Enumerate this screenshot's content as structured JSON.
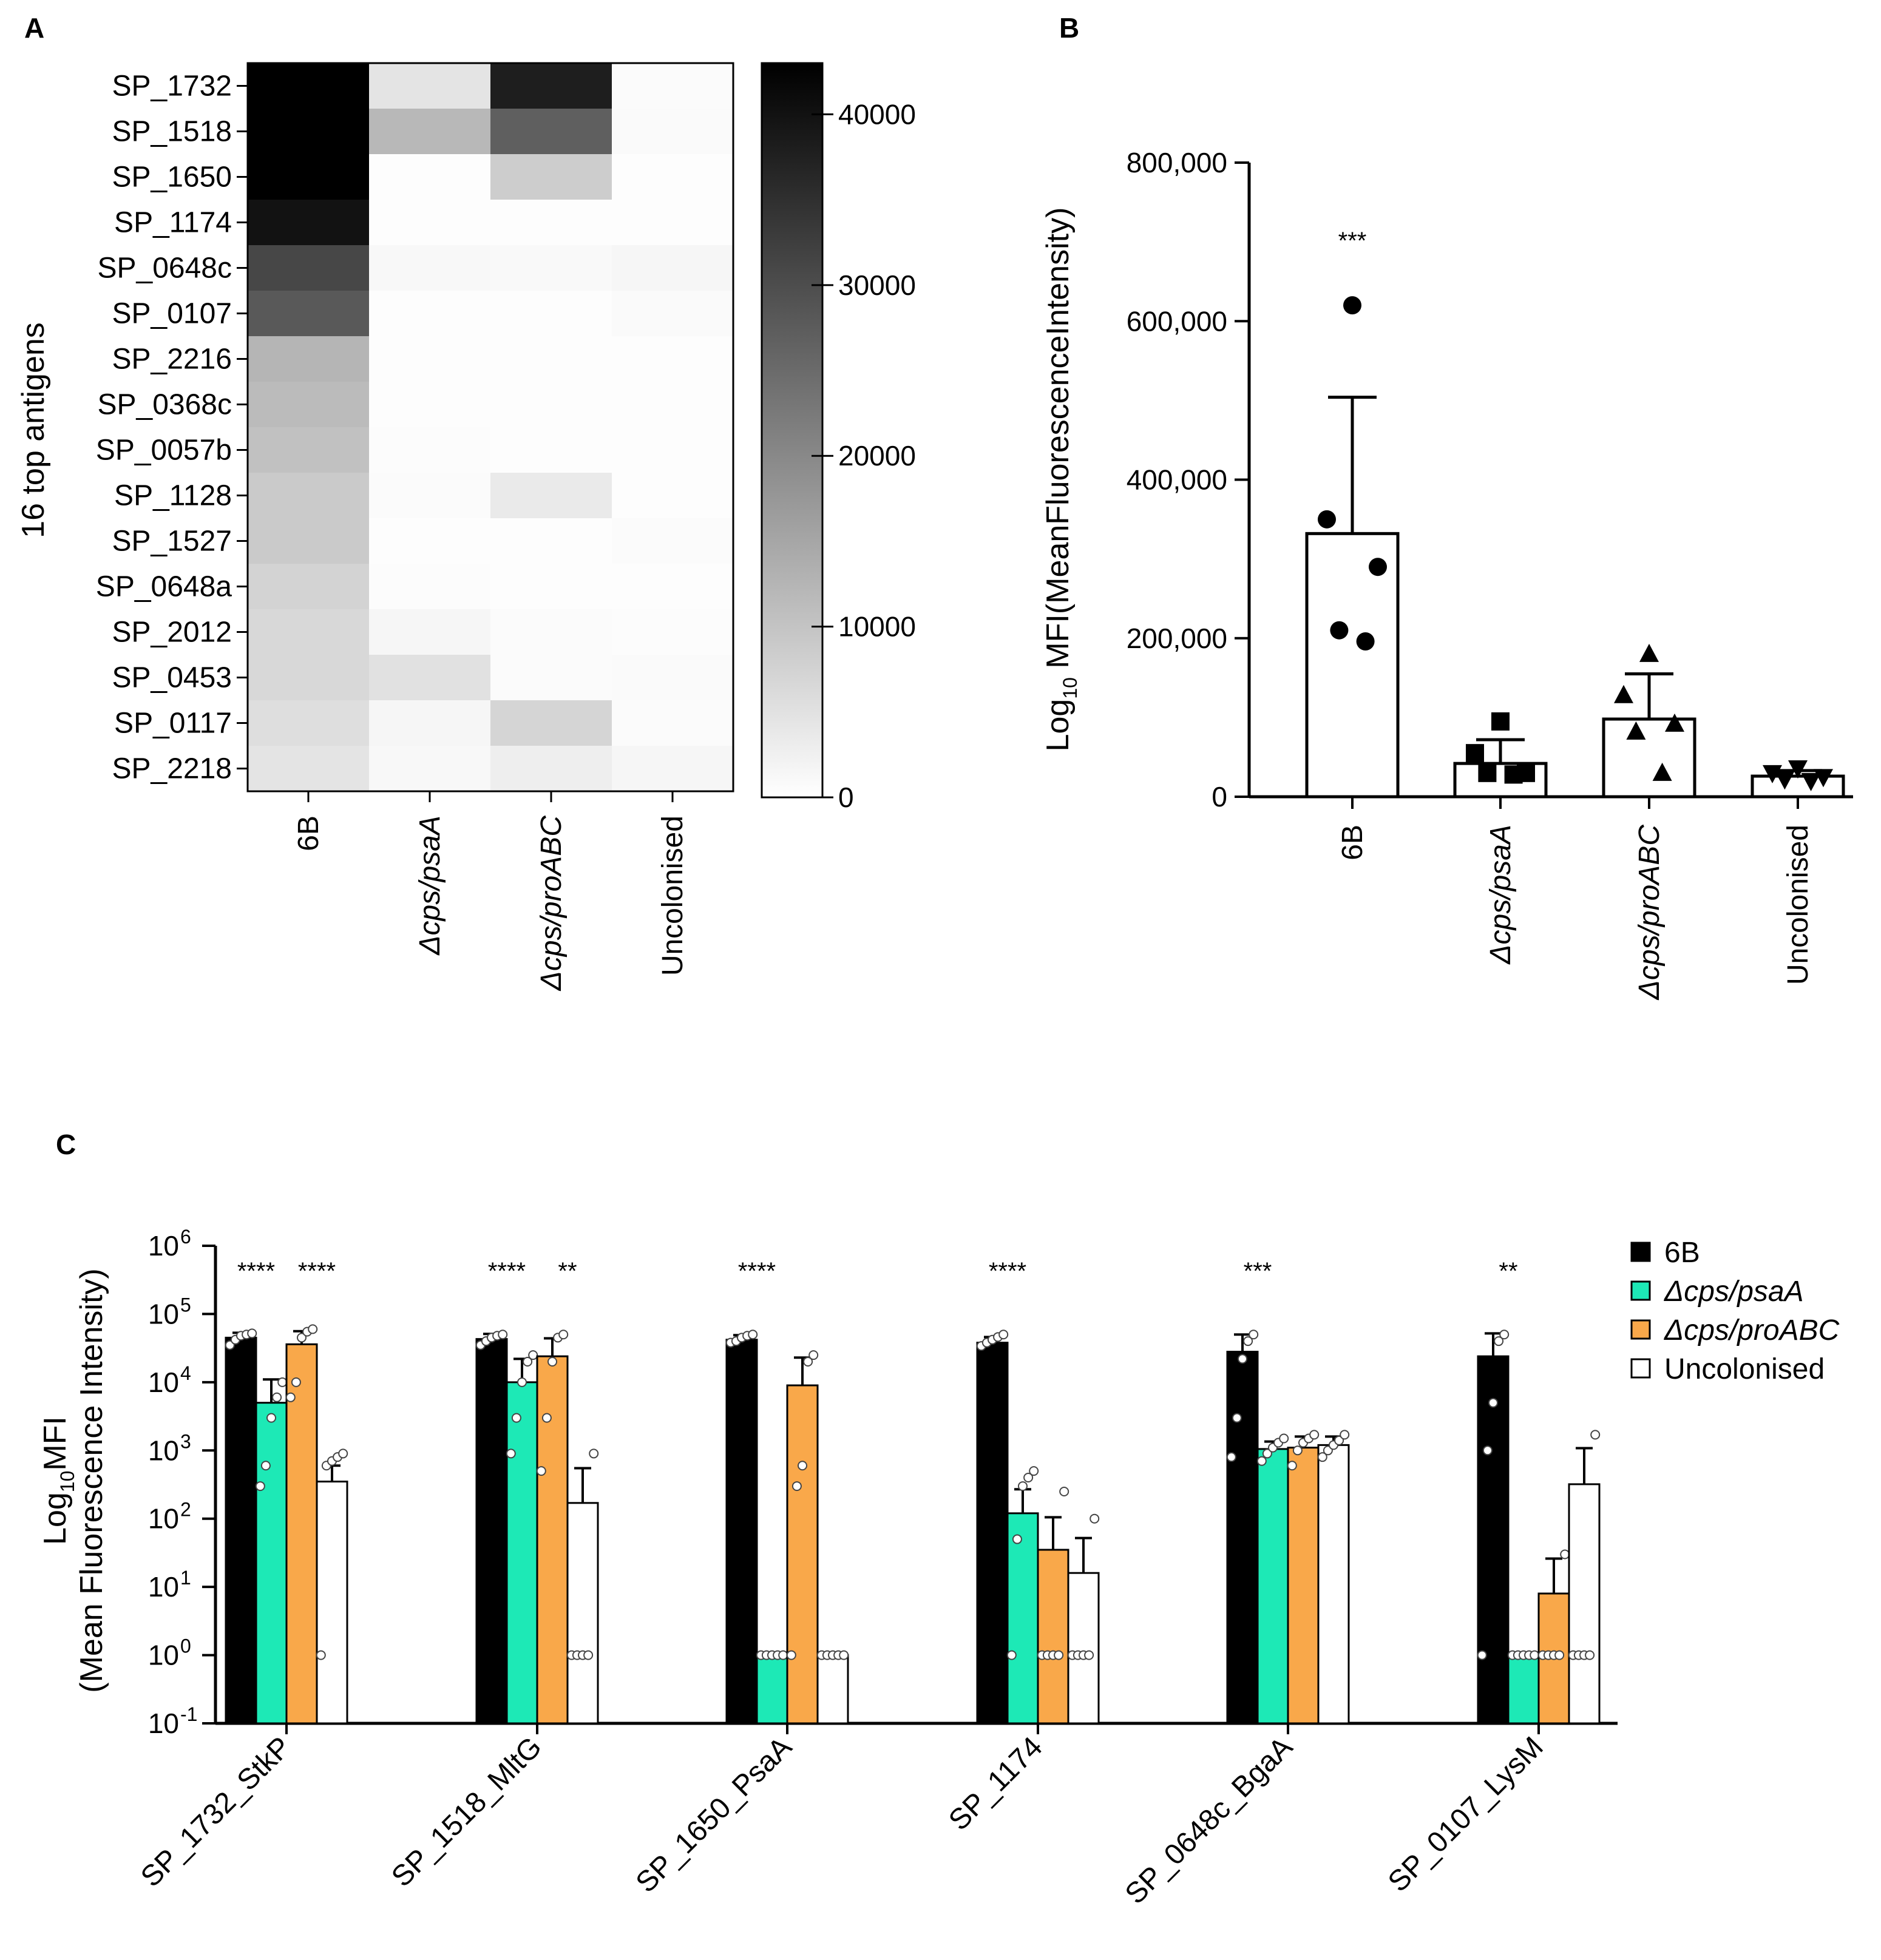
{
  "panels": {
    "A": {
      "label": "A"
    },
    "B": {
      "label": "B"
    },
    "C": {
      "label": "C"
    }
  },
  "colors": {
    "6B": "#000000",
    "psaA": "#1de9b6",
    "proABC": "#f9a84a",
    "Uncolonised": "#ffffff"
  },
  "chart_data": [
    {
      "id": "A",
      "type": "heatmap",
      "ylabel": "16 top antigens",
      "rows": [
        "SP_1732",
        "SP_1518",
        "SP_1650",
        "SP_1174",
        "SP_0648c",
        "SP_0107",
        "SP_2216",
        "SP_0368c",
        "SP_0057b",
        "SP_1128",
        "SP_1527",
        "SP_0648a",
        "SP_2012",
        "SP_0453",
        "SP_0117",
        "SP_2218"
      ],
      "columns": [
        "6B",
        "Δcps/psaA",
        "Δcps/proABC",
        "Uncolonised"
      ],
      "values": [
        [
          43000,
          4500,
          38000,
          600
        ],
        [
          43000,
          12000,
          27000,
          900
        ],
        [
          43000,
          400,
          8500,
          400
        ],
        [
          40000,
          300,
          300,
          300
        ],
        [
          31000,
          1200,
          1000,
          1500
        ],
        [
          28000,
          400,
          300,
          800
        ],
        [
          12500,
          300,
          300,
          300
        ],
        [
          11500,
          300,
          300,
          300
        ],
        [
          10500,
          500,
          400,
          400
        ],
        [
          9000,
          700,
          3500,
          400
        ],
        [
          9000,
          300,
          300,
          700
        ],
        [
          7500,
          500,
          400,
          400
        ],
        [
          6500,
          1500,
          700,
          500
        ],
        [
          6500,
          5000,
          700,
          900
        ],
        [
          5500,
          1500,
          7000,
          600
        ],
        [
          4500,
          1200,
          2800,
          1500
        ]
      ],
      "colorbar": {
        "min": 0,
        "max": 43000,
        "ticks": [
          0,
          10000,
          20000,
          30000,
          40000
        ],
        "tick_labels": [
          "0",
          "10000",
          "20000",
          "30000",
          "40000"
        ]
      }
    },
    {
      "id": "B",
      "type": "bar",
      "ylabel_prefix": "Log",
      "ylabel_sub": "10",
      "ylabel_rest": " MFI(MeanFluorescenceIntensity)",
      "categories": [
        "6B",
        "Δcps/psaA",
        "Δcps/proABC",
        "Uncolonised"
      ],
      "values": [
        332000,
        42000,
        98000,
        26000
      ],
      "errors": [
        172000,
        30000,
        57000,
        7000
      ],
      "points": [
        [
          620000,
          350000,
          290000,
          210000,
          196000
        ],
        [
          95000,
          55000,
          30000,
          30000,
          28000
        ],
        [
          180000,
          128000,
          92000,
          82000,
          30000
        ],
        [
          36000,
          30000,
          25000,
          22000,
          20000
        ]
      ],
      "markers": [
        "circle",
        "square",
        "triangle-up",
        "triangle-down"
      ],
      "ylim": [
        0,
        800000
      ],
      "yticks": [
        0,
        200000,
        400000,
        600000,
        800000
      ],
      "ytick_labels": [
        "0",
        "200,000",
        "400,000",
        "600,000",
        "800,000"
      ],
      "annotations": [
        "***",
        "",
        "",
        ""
      ]
    },
    {
      "id": "C",
      "type": "bar",
      "scale": "log10",
      "ylabel_line1_prefix": "Log",
      "ylabel_line1_sub": "10",
      "ylabel_line1_rest": "MFI",
      "ylabel_line2": "(Mean Fluorescence Intensity)",
      "categories": [
        "SP_1732_StkP",
        "SP_1518_MltG",
        "SP_1650_PsaA",
        "SP_1174",
        "SP_0648c_BgaA",
        "SP_0107_LysM"
      ],
      "series": [
        {
          "name": "6B",
          "color_key": "6B",
          "values": [
            45000,
            43000,
            42000,
            38000,
            28000,
            24000
          ],
          "errors": [
            8000,
            8000,
            7000,
            8000,
            22000,
            28000
          ],
          "points": [
            [
              35000,
              42000,
              48000,
              50000,
              52000
            ],
            [
              35000,
              40000,
              45000,
              48000,
              50000
            ],
            [
              38000,
              40000,
              45000,
              48000,
              50000
            ],
            [
              34000,
              38000,
              42000,
              46000,
              50000
            ],
            [
              800,
              3000,
              22000,
              40000,
              50000
            ],
            [
              1,
              1000,
              5000,
              40000,
              50000
            ]
          ]
        },
        {
          "name": "Δcps/psaA",
          "color_key": "psaA",
          "values": [
            5000,
            10000,
            1,
            120,
            1050,
            1
          ],
          "errors": [
            6000,
            12000,
            0,
            150,
            300,
            0
          ],
          "points": [
            [
              300,
              600,
              3000,
              6000,
              10000
            ],
            [
              900,
              3000,
              10000,
              20000,
              25000
            ],
            [
              1,
              1,
              1,
              1,
              1
            ],
            [
              1,
              50,
              300,
              400,
              500
            ],
            [
              700,
              900,
              1100,
              1300,
              1500
            ],
            [
              1,
              1,
              1,
              1,
              1
            ]
          ]
        },
        {
          "name": "Δcps/proABC",
          "color_key": "proABC",
          "values": [
            36000,
            24000,
            9000,
            35,
            1100,
            8
          ],
          "errors": [
            20000,
            20000,
            14000,
            70,
            500,
            18
          ],
          "points": [
            [
              6000,
              10000,
              45000,
              55000,
              60000
            ],
            [
              500,
              3000,
              20000,
              45000,
              50000
            ],
            [
              1,
              300,
              600,
              20000,
              25000
            ],
            [
              1,
              1,
              1,
              1,
              250
            ],
            [
              600,
              1000,
              1300,
              1500,
              1700
            ],
            [
              1,
              1,
              1,
              1,
              30
            ]
          ]
        },
        {
          "name": "Uncolonised",
          "color_key": "Uncolonised",
          "values": [
            350,
            170,
            1,
            16,
            1200,
            320
          ],
          "errors": [
            250,
            380,
            0,
            36,
            400,
            760
          ],
          "points": [
            [
              1,
              600,
              700,
              800,
              900
            ],
            [
              1,
              1,
              1,
              1,
              900
            ],
            [
              1,
              1,
              1,
              1,
              1
            ],
            [
              1,
              1,
              1,
              1,
              100
            ],
            [
              800,
              1000,
              1200,
              1400,
              1700
            ],
            [
              1,
              1,
              1,
              1,
              1700
            ]
          ]
        }
      ],
      "ylim": [
        0.1,
        1000000
      ],
      "ytick_exponents": [
        "-1",
        "0",
        "1",
        "2",
        "3",
        "4",
        "5",
        "6"
      ],
      "ytick_base": "10",
      "annotations": [
        [
          "****",
          "",
          "****",
          ""
        ],
        [
          "****",
          "",
          "**",
          ""
        ],
        [
          "****",
          "",
          "",
          ""
        ],
        [
          "****",
          "",
          "",
          ""
        ],
        [
          "***",
          "",
          "",
          ""
        ],
        [
          "**",
          "",
          "",
          ""
        ]
      ],
      "legend": [
        "6B",
        "Δcps/psaA",
        "Δcps/proABC",
        "Uncolonised"
      ],
      "legend_position": "top-right"
    }
  ]
}
